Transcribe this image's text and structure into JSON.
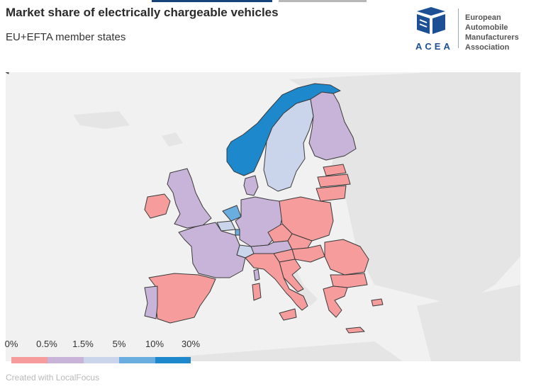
{
  "title": "Market share of electrically chargeable vehicles",
  "subtitle": "EU+EFTA member states",
  "logo": {
    "wordmark": "ACEA",
    "lines": [
      "European",
      "Automobile",
      "Manufacturers",
      "Association"
    ],
    "mark_color": "#1c4f94"
  },
  "map": {
    "background_color": "#f1f1f1",
    "non_member_land_color": "#e5e5e5",
    "country_classes": {
      "c0": "#f79c9c",
      "c1": "#c8b4d8",
      "c2": "#cad4ea",
      "c3": "#6aaee0",
      "c4": "#1e88cc"
    }
  },
  "legend": {
    "labels": [
      "0%",
      "0.5%",
      "1.5%",
      "5%",
      "10%",
      "30%"
    ],
    "colors": [
      "#f79c9c",
      "#c8b4d8",
      "#cad4ea",
      "#6aaee0",
      "#1e88cc"
    ]
  },
  "credit": "Created with LocalFocus"
}
